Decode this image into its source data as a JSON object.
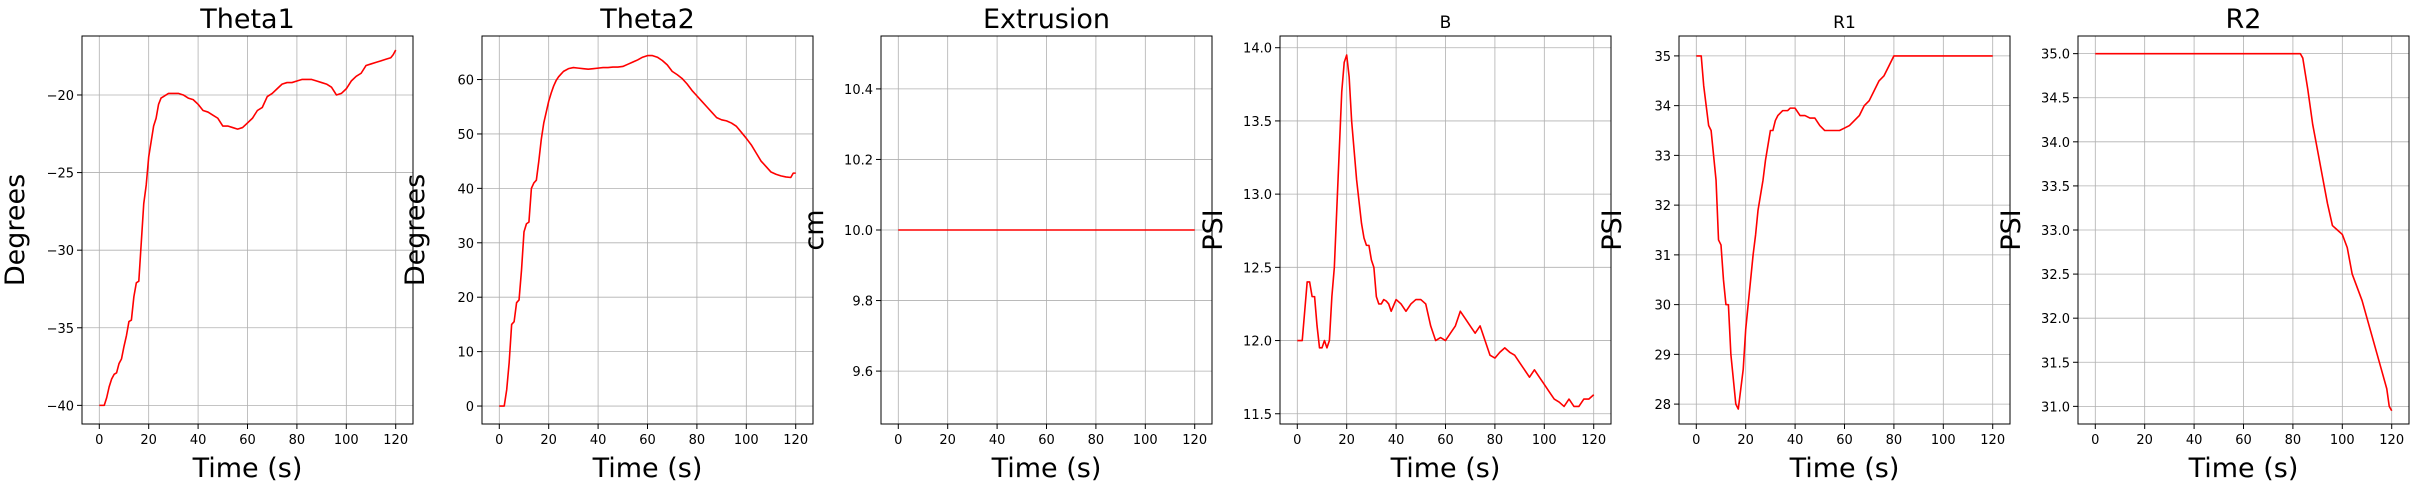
{
  "chart_data": [
    {
      "type": "line",
      "title": "Theta1",
      "title_size": "large",
      "xlabel": "Time (s)",
      "ylabel": "Degrees",
      "xlim": [
        -7,
        127
      ],
      "ylim": [
        -41.2,
        -16.2
      ],
      "xticks": [
        0,
        20,
        40,
        60,
        80,
        100,
        120
      ],
      "yticks": [
        -40,
        -35,
        -30,
        -25,
        -20
      ],
      "grid": true,
      "series": [
        {
          "color": "#ff0000",
          "x": [
            0,
            2,
            3,
            4,
            5,
            6,
            7,
            8,
            9,
            10,
            11,
            12,
            13,
            14,
            15,
            16,
            17,
            18,
            19,
            20,
            21,
            22,
            23,
            24,
            25,
            26,
            28,
            30,
            32,
            34,
            36,
            38,
            40,
            42,
            44,
            46,
            48,
            50,
            52,
            54,
            56,
            58,
            60,
            62,
            64,
            66,
            68,
            70,
            72,
            74,
            76,
            78,
            80,
            82,
            84,
            86,
            88,
            90,
            92,
            94,
            96,
            98,
            100,
            102,
            104,
            106,
            108,
            110,
            112,
            114,
            116,
            118,
            119,
            120
          ],
          "y": [
            -40,
            -40,
            -39.5,
            -38.8,
            -38.3,
            -38,
            -37.9,
            -37.3,
            -37,
            -36.2,
            -35.5,
            -34.6,
            -34.5,
            -33,
            -32.1,
            -32,
            -29.5,
            -27,
            -25.8,
            -24,
            -23,
            -22,
            -21.5,
            -20.6,
            -20.2,
            -20.1,
            -19.9,
            -19.9,
            -19.9,
            -20,
            -20.2,
            -20.3,
            -20.6,
            -21,
            -21.1,
            -21.3,
            -21.5,
            -22,
            -22,
            -22.1,
            -22.2,
            -22.1,
            -21.8,
            -21.5,
            -21,
            -20.8,
            -20.1,
            -19.9,
            -19.6,
            -19.3,
            -19.2,
            -19.2,
            -19.1,
            -19,
            -19,
            -19,
            -19.1,
            -19.2,
            -19.3,
            -19.5,
            -20,
            -19.9,
            -19.6,
            -19.1,
            -18.8,
            -18.6,
            -18.1,
            -18,
            -17.9,
            -17.8,
            -17.7,
            -17.6,
            -17.4,
            -17.1
          ]
        }
      ]
    },
    {
      "type": "line",
      "title": "Theta2",
      "title_size": "large",
      "xlabel": "Time (s)",
      "ylabel": "Degrees",
      "xlim": [
        -7,
        127
      ],
      "ylim": [
        -3.3,
        68
      ],
      "xticks": [
        0,
        20,
        40,
        60,
        80,
        100,
        120
      ],
      "yticks": [
        0,
        10,
        20,
        30,
        40,
        50,
        60
      ],
      "grid": true,
      "series": [
        {
          "color": "#ff0000",
          "x": [
            0,
            2,
            3,
            4,
            5,
            6,
            7,
            8,
            9,
            10,
            11,
            12,
            13,
            14,
            15,
            16,
            17,
            18,
            19,
            20,
            21,
            22,
            23,
            24,
            25,
            26,
            28,
            30,
            32,
            34,
            36,
            38,
            40,
            42,
            44,
            46,
            48,
            50,
            52,
            54,
            56,
            58,
            60,
            62,
            64,
            66,
            68,
            70,
            72,
            74,
            76,
            78,
            80,
            82,
            84,
            86,
            88,
            90,
            92,
            94,
            96,
            98,
            100,
            102,
            104,
            106,
            108,
            110,
            112,
            114,
            116,
            118,
            119,
            120
          ],
          "y": [
            0,
            0,
            3,
            8,
            15,
            15.5,
            19,
            19.5,
            25,
            32,
            33.5,
            33.8,
            40,
            41,
            41.5,
            45,
            49,
            52,
            54,
            56,
            57.5,
            58.8,
            59.8,
            60.5,
            61,
            61.5,
            62,
            62.2,
            62.1,
            62,
            61.9,
            62,
            62.1,
            62.2,
            62.2,
            62.3,
            62.3,
            62.4,
            62.8,
            63.2,
            63.6,
            64.1,
            64.4,
            64.4,
            64.1,
            63.5,
            62.7,
            61.5,
            60.9,
            60.2,
            59.2,
            58,
            57,
            56,
            55,
            54,
            53,
            52.6,
            52.4,
            52,
            51.4,
            50.3,
            49.2,
            48,
            46.5,
            45,
            44,
            43,
            42.6,
            42.3,
            42.1,
            42.0,
            42.8,
            42.8
          ]
        }
      ]
    },
    {
      "type": "line",
      "title": "Extrusion",
      "title_size": "large",
      "xlabel": "Time (s)",
      "ylabel": "cm",
      "xlim": [
        -7,
        127
      ],
      "ylim": [
        9.45,
        10.55
      ],
      "xticks": [
        0,
        20,
        40,
        60,
        80,
        100,
        120
      ],
      "yticks": [
        9.6,
        9.8,
        10.0,
        10.2,
        10.4
      ],
      "ytick_labels": [
        "9.6",
        "9.8",
        "10.0",
        "10.2",
        "10.4"
      ],
      "grid": true,
      "series": [
        {
          "color": "#ff0000",
          "x": [
            0,
            120
          ],
          "y": [
            10.0,
            10.0
          ]
        }
      ]
    },
    {
      "type": "line",
      "title": "B",
      "title_size": "small",
      "xlabel": "Time (s)",
      "ylabel": "PSI",
      "xlim": [
        -7,
        127
      ],
      "ylim": [
        11.43,
        14.08
      ],
      "xticks": [
        0,
        20,
        40,
        60,
        80,
        100,
        120
      ],
      "yticks": [
        11.5,
        12.0,
        12.5,
        13.0,
        13.5,
        14.0
      ],
      "ytick_labels": [
        "11.5",
        "12.0",
        "12.5",
        "13.0",
        "13.5",
        "14.0"
      ],
      "grid": true,
      "series": [
        {
          "color": "#ff0000",
          "x": [
            0,
            2,
            3,
            4,
            5,
            6,
            7,
            8,
            9,
            10,
            11,
            12,
            13,
            14,
            15,
            16,
            17,
            18,
            19,
            20,
            21,
            22,
            23,
            24,
            25,
            26,
            27,
            28,
            29,
            30,
            31,
            32,
            33,
            34,
            35,
            36,
            37,
            38,
            40,
            42,
            44,
            46,
            48,
            50,
            52,
            54,
            56,
            58,
            60,
            62,
            64,
            66,
            68,
            70,
            72,
            74,
            76,
            78,
            80,
            82,
            84,
            86,
            88,
            90,
            92,
            94,
            96,
            98,
            100,
            102,
            104,
            106,
            108,
            110,
            112,
            114,
            116,
            118,
            120
          ],
          "y": [
            12.0,
            12.0,
            12.2,
            12.4,
            12.4,
            12.3,
            12.3,
            12.1,
            11.95,
            11.95,
            12.0,
            11.95,
            12.0,
            12.3,
            12.5,
            12.9,
            13.3,
            13.7,
            13.9,
            13.95,
            13.8,
            13.5,
            13.3,
            13.1,
            12.95,
            12.8,
            12.7,
            12.65,
            12.65,
            12.55,
            12.5,
            12.3,
            12.25,
            12.25,
            12.28,
            12.27,
            12.25,
            12.2,
            12.28,
            12.25,
            12.2,
            12.25,
            12.28,
            12.28,
            12.25,
            12.1,
            12.0,
            12.02,
            12.0,
            12.05,
            12.1,
            12.2,
            12.15,
            12.1,
            12.05,
            12.1,
            12.0,
            11.9,
            11.88,
            11.92,
            11.95,
            11.92,
            11.9,
            11.85,
            11.8,
            11.75,
            11.8,
            11.75,
            11.7,
            11.65,
            11.6,
            11.58,
            11.55,
            11.6,
            11.55,
            11.55,
            11.6,
            11.6,
            11.63
          ]
        }
      ]
    },
    {
      "type": "line",
      "title": "R1",
      "title_size": "small",
      "xlabel": "Time (s)",
      "ylabel": "PSI",
      "xlim": [
        -7,
        127
      ],
      "ylim": [
        27.6,
        35.4
      ],
      "xticks": [
        0,
        20,
        40,
        60,
        80,
        100,
        120
      ],
      "yticks": [
        28,
        29,
        30,
        31,
        32,
        33,
        34,
        35
      ],
      "grid": true,
      "series": [
        {
          "color": "#ff0000",
          "x": [
            0,
            2,
            3,
            4,
            5,
            6,
            7,
            8,
            9,
            10,
            11,
            12,
            13,
            14,
            15,
            16,
            17,
            18,
            19,
            20,
            21,
            22,
            23,
            24,
            25,
            26,
            27,
            28,
            29,
            30,
            31,
            32,
            33,
            34,
            35,
            36,
            37,
            38,
            39,
            40,
            42,
            44,
            46,
            48,
            50,
            52,
            54,
            56,
            58,
            60,
            62,
            64,
            66,
            68,
            70,
            72,
            74,
            76,
            78,
            80,
            82,
            84,
            86,
            88,
            90,
            95,
            100,
            105,
            110,
            115,
            120
          ],
          "y": [
            35,
            35,
            34.4,
            34.0,
            33.6,
            33.5,
            33.0,
            32.5,
            31.3,
            31.2,
            30.5,
            30.0,
            30.0,
            29.0,
            28.5,
            28.0,
            27.9,
            28.3,
            28.7,
            29.5,
            30.0,
            30.5,
            31.0,
            31.4,
            31.9,
            32.2,
            32.5,
            32.9,
            33.2,
            33.5,
            33.5,
            33.7,
            33.8,
            33.85,
            33.9,
            33.9,
            33.9,
            33.95,
            33.95,
            33.95,
            33.8,
            33.8,
            33.75,
            33.75,
            33.6,
            33.5,
            33.5,
            33.5,
            33.5,
            33.55,
            33.6,
            33.7,
            33.8,
            34.0,
            34.1,
            34.3,
            34.5,
            34.6,
            34.8,
            35.0,
            35.0,
            35.0,
            35.0,
            35.0,
            35.0,
            35.0,
            35.0,
            35.0,
            35.0,
            35.0,
            35.0
          ]
        }
      ]
    },
    {
      "type": "line",
      "title": "R2",
      "title_size": "large",
      "xlabel": "Time (s)",
      "ylabel": "PSI",
      "xlim": [
        -7,
        127
      ],
      "ylim": [
        30.8,
        35.2
      ],
      "xticks": [
        0,
        20,
        40,
        60,
        80,
        100,
        120
      ],
      "yticks": [
        31.0,
        31.5,
        32.0,
        32.5,
        33.0,
        33.5,
        34.0,
        34.5,
        35.0
      ],
      "ytick_labels": [
        "31.0",
        "31.5",
        "32.0",
        "32.5",
        "33.0",
        "33.5",
        "34.0",
        "34.5",
        "35.0"
      ],
      "grid": true,
      "series": [
        {
          "color": "#ff0000",
          "x": [
            0,
            20,
            40,
            60,
            80,
            83,
            84,
            86,
            88,
            90,
            92,
            94,
            96,
            98,
            100,
            102,
            104,
            106,
            108,
            110,
            112,
            114,
            116,
            118,
            119,
            120
          ],
          "y": [
            35.0,
            35.0,
            35.0,
            35.0,
            35.0,
            35.0,
            34.95,
            34.6,
            34.2,
            33.9,
            33.6,
            33.3,
            33.05,
            33.0,
            32.95,
            32.8,
            32.5,
            32.35,
            32.2,
            32.0,
            31.8,
            31.6,
            31.4,
            31.2,
            31.0,
            30.95
          ]
        }
      ]
    }
  ]
}
